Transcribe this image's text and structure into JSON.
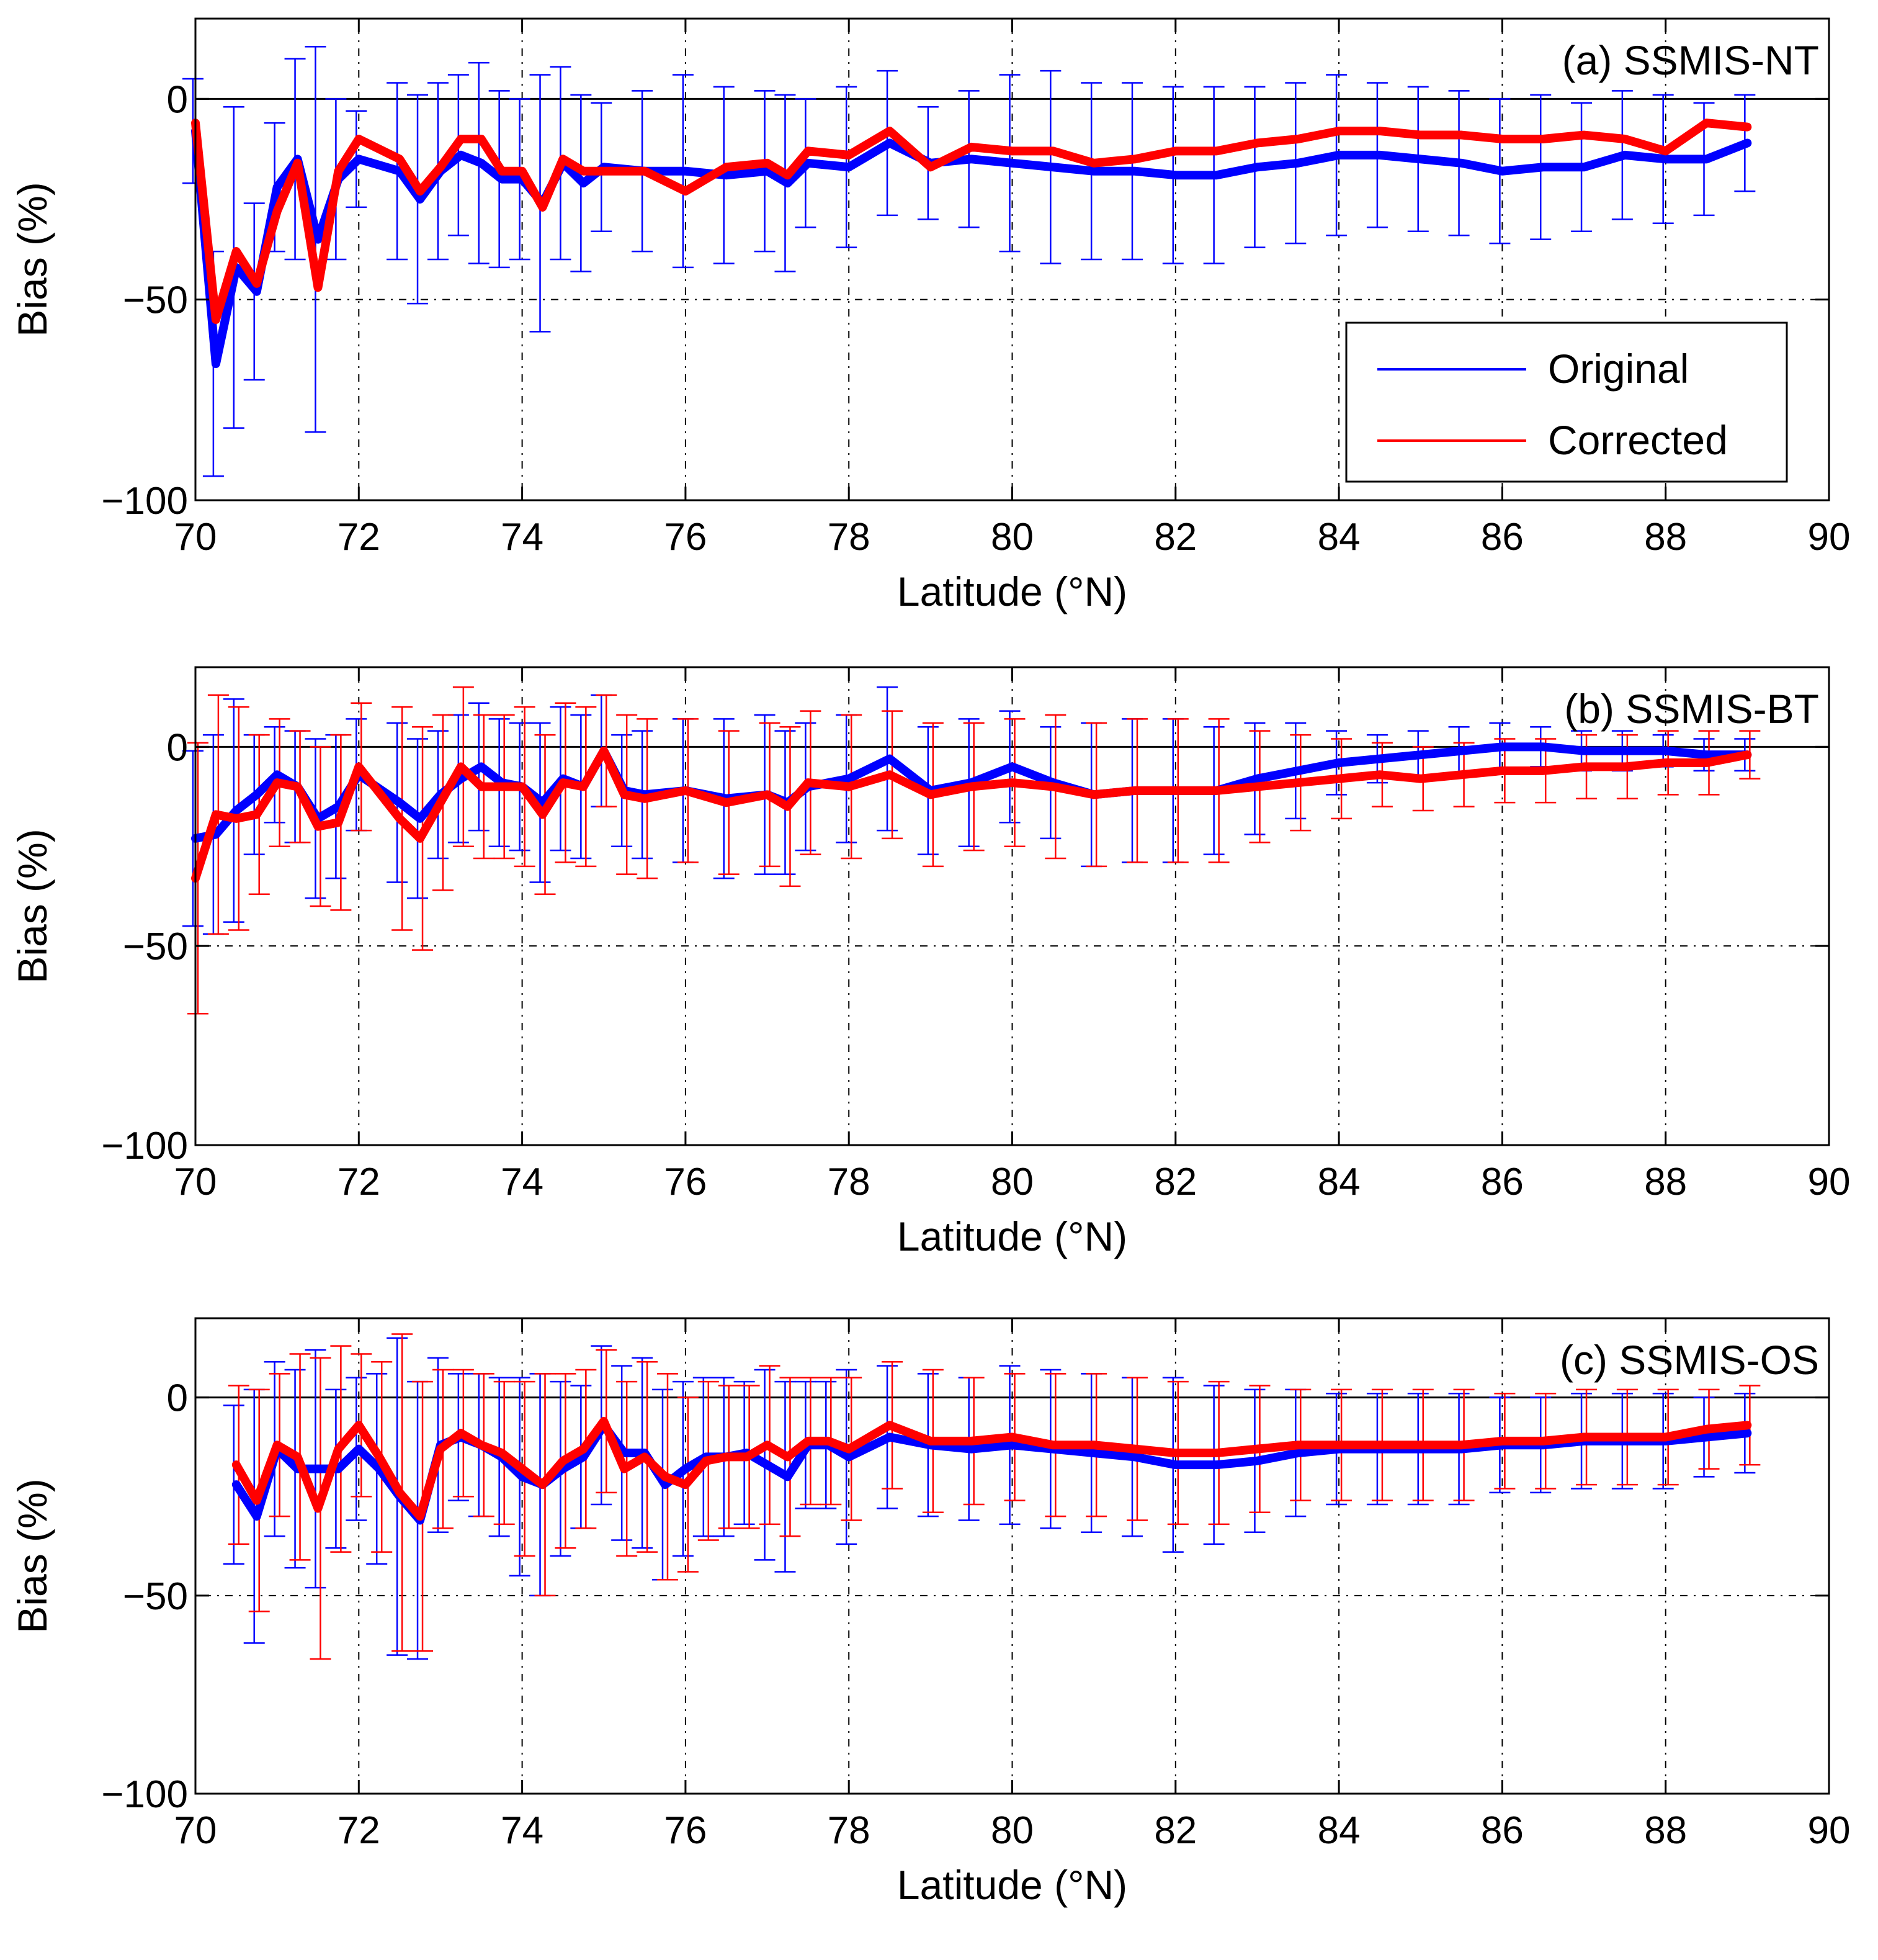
{
  "chart_data": [
    {
      "type": "line",
      "panel_label": "(a) SSMIS-NT",
      "xlabel": "Latitude (°N)",
      "ylabel": "Bias (%)",
      "xlim": [
        70,
        90
      ],
      "ylim": [
        -100,
        20
      ],
      "xticks": [
        "70",
        "72",
        "74",
        "76",
        "78",
        "80",
        "82",
        "84",
        "86",
        "88",
        "90"
      ],
      "yticks": [
        "0",
        "−50",
        "−100"
      ],
      "grid": true,
      "legend": {
        "position": "bottom-right",
        "entries": [
          "Original",
          "Corrected"
        ]
      },
      "series": [
        {
          "name": "Original",
          "color": "#0000ff",
          "x": [
            70.0,
            70.25,
            70.5,
            70.75,
            71.0,
            71.25,
            71.5,
            71.75,
            72.0,
            72.5,
            72.75,
            73.0,
            73.25,
            73.5,
            73.75,
            74.0,
            74.25,
            74.5,
            74.75,
            75.0,
            75.5,
            76.0,
            76.5,
            77.0,
            77.25,
            77.5,
            78.0,
            78.5,
            79.0,
            79.5,
            80.0,
            80.5,
            81.0,
            81.5,
            82.0,
            82.5,
            83.0,
            83.5,
            84.0,
            84.5,
            85.0,
            85.5,
            86.0,
            86.5,
            87.0,
            87.5,
            88.0,
            88.5,
            89.0
          ],
          "y": [
            -8,
            -66,
            -42,
            -48,
            -22,
            -15,
            -35,
            -20,
            -15,
            -18,
            -25,
            -18,
            -14,
            -16,
            -20,
            -20,
            -26,
            -16,
            -21,
            -17,
            -18,
            -18,
            -19,
            -18,
            -21,
            -16,
            -17,
            -11,
            -16,
            -15,
            -16,
            -17,
            -18,
            -18,
            -19,
            -19,
            -17,
            -16,
            -14,
            -14,
            -15,
            -16,
            -18,
            -17,
            -17,
            -14,
            -15,
            -15,
            -11
          ],
          "error": [
            13,
            28,
            40,
            22,
            16,
            25,
            48,
            20,
            12,
            22,
            26,
            22,
            20,
            25,
            22,
            20,
            32,
            24,
            22,
            16,
            20,
            24,
            22,
            20,
            22,
            16,
            20,
            18,
            14,
            17,
            22,
            24,
            22,
            22,
            22,
            22,
            20,
            20,
            20,
            18,
            18,
            18,
            18,
            18,
            16,
            16,
            16,
            14,
            12
          ]
        },
        {
          "name": "Corrected",
          "color": "#ff0000",
          "x": [
            70.0,
            70.25,
            70.5,
            70.75,
            71.0,
            71.25,
            71.5,
            71.75,
            72.0,
            72.5,
            72.75,
            73.0,
            73.25,
            73.5,
            73.75,
            74.0,
            74.25,
            74.5,
            74.75,
            75.0,
            75.5,
            76.0,
            76.5,
            77.0,
            77.25,
            77.5,
            78.0,
            78.5,
            79.0,
            79.5,
            80.0,
            80.5,
            81.0,
            81.5,
            82.0,
            82.5,
            83.0,
            83.5,
            84.0,
            84.5,
            85.0,
            85.5,
            86.0,
            86.5,
            87.0,
            87.5,
            88.0,
            88.5,
            89.0
          ],
          "y": [
            -6,
            -55,
            -38,
            -46,
            -28,
            -16,
            -47,
            -18,
            -10,
            -15,
            -23,
            -17,
            -10,
            -10,
            -18,
            -18,
            -27,
            -15,
            -18,
            -18,
            -18,
            -23,
            -17,
            -16,
            -19,
            -13,
            -14,
            -8,
            -17,
            -12,
            -13,
            -13,
            -16,
            -15,
            -13,
            -13,
            -11,
            -10,
            -8,
            -8,
            -9,
            -9,
            -10,
            -10,
            -9,
            -10,
            -13,
            -6,
            -7
          ]
        }
      ]
    },
    {
      "type": "line",
      "panel_label": "(b) SSMIS-BT",
      "xlabel": "Latitude (°N)",
      "ylabel": "Bias (%)",
      "xlim": [
        70,
        90
      ],
      "ylim": [
        -100,
        20
      ],
      "xticks": [
        "70",
        "72",
        "74",
        "76",
        "78",
        "80",
        "82",
        "84",
        "86",
        "88",
        "90"
      ],
      "yticks": [
        "0",
        "−50",
        "−100"
      ],
      "grid": true,
      "series": [
        {
          "name": "Original",
          "color": "#0000ff",
          "x": [
            70.0,
            70.25,
            70.5,
            70.75,
            71.0,
            71.25,
            71.5,
            71.75,
            72.0,
            72.5,
            72.75,
            73.0,
            73.25,
            73.5,
            73.75,
            74.0,
            74.25,
            74.5,
            74.75,
            75.0,
            75.25,
            75.5,
            76.0,
            76.5,
            77.0,
            77.25,
            77.5,
            78.0,
            78.5,
            79.0,
            79.5,
            80.0,
            80.5,
            81.0,
            81.5,
            82.0,
            82.5,
            83.0,
            83.5,
            84.0,
            84.5,
            85.0,
            85.5,
            86.0,
            86.5,
            87.0,
            87.5,
            88.0,
            88.5,
            89.0
          ],
          "y": [
            -23,
            -22,
            -16,
            -12,
            -7,
            -10,
            -18,
            -15,
            -7,
            -14,
            -18,
            -12,
            -8,
            -5,
            -9,
            -10,
            -14,
            -8,
            -10,
            -1,
            -11,
            -12,
            -11,
            -13,
            -12,
            -14,
            -10,
            -8,
            -3,
            -11,
            -9,
            -5,
            -9,
            -12,
            -11,
            -11,
            -11,
            -8,
            -6,
            -4,
            -3,
            -2,
            -1,
            0,
            0,
            -1,
            -1,
            -1,
            -2,
            -2
          ],
          "error": [
            22,
            25,
            28,
            15,
            12,
            14,
            20,
            18,
            14,
            20,
            20,
            16,
            16,
            16,
            16,
            16,
            20,
            18,
            18,
            14,
            14,
            16,
            18,
            20,
            20,
            18,
            16,
            16,
            18,
            16,
            16,
            14,
            14,
            18,
            18,
            18,
            16,
            14,
            12,
            8,
            6,
            6,
            6,
            6,
            5,
            5,
            5,
            4,
            4,
            4
          ]
        },
        {
          "name": "Corrected",
          "color": "#ff0000",
          "x": [
            70.0,
            70.25,
            70.5,
            70.75,
            71.0,
            71.25,
            71.5,
            71.75,
            72.0,
            72.5,
            72.75,
            73.0,
            73.25,
            73.5,
            73.75,
            74.0,
            74.25,
            74.5,
            74.75,
            75.0,
            75.25,
            75.5,
            76.0,
            76.5,
            77.0,
            77.25,
            77.5,
            78.0,
            78.5,
            79.0,
            79.5,
            80.0,
            80.5,
            81.0,
            81.5,
            82.0,
            82.5,
            83.0,
            83.5,
            84.0,
            84.5,
            85.0,
            85.5,
            86.0,
            86.5,
            87.0,
            87.5,
            88.0,
            88.5,
            89.0
          ],
          "y": [
            -33,
            -17,
            -18,
            -17,
            -9,
            -10,
            -20,
            -19,
            -5,
            -18,
            -23,
            -14,
            -5,
            -10,
            -10,
            -10,
            -17,
            -9,
            -10,
            -1,
            -12,
            -13,
            -11,
            -14,
            -12,
            -15,
            -9,
            -10,
            -7,
            -12,
            -10,
            -9,
            -10,
            -12,
            -11,
            -11,
            -11,
            -10,
            -9,
            -8,
            -7,
            -8,
            -7,
            -6,
            -6,
            -5,
            -5,
            -4,
            -4,
            -2
          ],
          "error": [
            34,
            30,
            28,
            20,
            16,
            14,
            20,
            22,
            16,
            28,
            28,
            22,
            20,
            18,
            18,
            20,
            20,
            20,
            20,
            14,
            20,
            20,
            18,
            18,
            18,
            20,
            18,
            18,
            16,
            18,
            16,
            16,
            18,
            18,
            18,
            18,
            18,
            14,
            12,
            10,
            8,
            8,
            8,
            8,
            8,
            8,
            8,
            8,
            8,
            6
          ]
        }
      ]
    },
    {
      "type": "line",
      "panel_label": "(c) SSMIS-OS",
      "xlabel": "Latitude (°N)",
      "ylabel": "Bias (%)",
      "xlim": [
        70,
        90
      ],
      "ylim": [
        -100,
        20
      ],
      "xticks": [
        "70",
        "72",
        "74",
        "76",
        "78",
        "80",
        "82",
        "84",
        "86",
        "88",
        "90"
      ],
      "yticks": [
        "0",
        "−50",
        "−100"
      ],
      "grid": true,
      "series": [
        {
          "name": "Original",
          "color": "#0000ff",
          "x": [
            70.5,
            70.75,
            71.0,
            71.25,
            71.5,
            71.75,
            72.0,
            72.25,
            72.5,
            72.75,
            73.0,
            73.25,
            73.5,
            73.75,
            74.0,
            74.25,
            74.5,
            74.75,
            75.0,
            75.25,
            75.5,
            75.75,
            76.0,
            76.25,
            76.5,
            76.75,
            77.0,
            77.25,
            77.5,
            77.75,
            78.0,
            78.5,
            79.0,
            79.5,
            80.0,
            80.5,
            81.0,
            81.5,
            82.0,
            82.5,
            83.0,
            83.5,
            84.0,
            84.5,
            85.0,
            85.5,
            86.0,
            86.5,
            87.0,
            87.5,
            88.0,
            88.5,
            89.0
          ],
          "y": [
            -22,
            -30,
            -13,
            -18,
            -18,
            -18,
            -13,
            -18,
            -25,
            -31,
            -12,
            -10,
            -12,
            -15,
            -20,
            -22,
            -18,
            -15,
            -7,
            -14,
            -14,
            -22,
            -18,
            -15,
            -15,
            -14,
            -17,
            -20,
            -12,
            -12,
            -15,
            -10,
            -12,
            -13,
            -12,
            -13,
            -14,
            -15,
            -17,
            -17,
            -16,
            -14,
            -13,
            -13,
            -13,
            -13,
            -12,
            -12,
            -11,
            -11,
            -11,
            -10,
            -9
          ],
          "error": [
            20,
            32,
            22,
            25,
            30,
            20,
            18,
            24,
            40,
            35,
            22,
            16,
            18,
            20,
            25,
            28,
            22,
            18,
            20,
            22,
            24,
            24,
            22,
            20,
            20,
            18,
            24,
            24,
            16,
            16,
            22,
            18,
            18,
            18,
            20,
            20,
            20,
            20,
            22,
            20,
            18,
            16,
            14,
            14,
            14,
            14,
            12,
            12,
            12,
            12,
            12,
            10,
            10
          ]
        },
        {
          "name": "Corrected",
          "color": "#ff0000",
          "x": [
            70.5,
            70.75,
            71.0,
            71.25,
            71.5,
            71.75,
            72.0,
            72.25,
            72.5,
            72.75,
            73.0,
            73.25,
            73.5,
            73.75,
            74.0,
            74.25,
            74.5,
            74.75,
            75.0,
            75.25,
            75.5,
            75.75,
            76.0,
            76.25,
            76.5,
            76.75,
            77.0,
            77.25,
            77.5,
            77.75,
            78.0,
            78.5,
            79.0,
            79.5,
            80.0,
            80.5,
            81.0,
            81.5,
            82.0,
            82.5,
            83.0,
            83.5,
            84.0,
            84.5,
            85.0,
            85.5,
            86.0,
            86.5,
            87.0,
            87.5,
            88.0,
            88.5,
            89.0
          ],
          "y": [
            -17,
            -26,
            -12,
            -15,
            -28,
            -13,
            -7,
            -15,
            -24,
            -30,
            -13,
            -9,
            -12,
            -14,
            -18,
            -22,
            -16,
            -13,
            -6,
            -18,
            -15,
            -20,
            -22,
            -16,
            -15,
            -15,
            -12,
            -15,
            -11,
            -11,
            -13,
            -7,
            -11,
            -11,
            -10,
            -12,
            -12,
            -13,
            -14,
            -14,
            -13,
            -12,
            -12,
            -12,
            -12,
            -12,
            -11,
            -11,
            -10,
            -10,
            -10,
            -8,
            -7
          ],
          "error": [
            20,
            28,
            18,
            26,
            38,
            26,
            18,
            24,
            40,
            34,
            20,
            16,
            18,
            18,
            22,
            28,
            22,
            20,
            18,
            22,
            24,
            26,
            22,
            20,
            18,
            18,
            20,
            20,
            16,
            16,
            18,
            16,
            18,
            16,
            16,
            18,
            18,
            18,
            18,
            18,
            16,
            14,
            14,
            14,
            14,
            14,
            12,
            12,
            12,
            12,
            12,
            10,
            10
          ]
        }
      ]
    }
  ]
}
